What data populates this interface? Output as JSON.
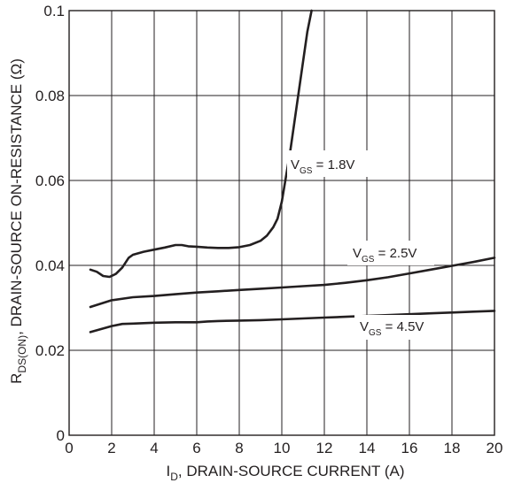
{
  "chart_data": {
    "type": "line",
    "xlabel": {
      "main": "I",
      "sub": "D",
      "rest": ", DRAIN-SOURCE CURRENT (A)"
    },
    "ylabel": {
      "main": "R",
      "sub": "DS(ON)",
      "rest": ", DRAIN-SOURCE ON-RESISTANCE (Ω)"
    },
    "xlim": [
      0,
      20
    ],
    "ylim": [
      0,
      0.1
    ],
    "x_ticks": [
      0,
      2,
      4,
      6,
      8,
      10,
      12,
      14,
      16,
      18,
      20
    ],
    "y_ticks": [
      0,
      0.02,
      0.04,
      0.06,
      0.08,
      0.1
    ],
    "y_tick_labels": [
      "0",
      "0.02",
      "0.04",
      "0.06",
      "0.08",
      "0.1"
    ],
    "grid": true,
    "series": [
      {
        "name": "VGS = 1.8V",
        "label": {
          "main": "V",
          "sub": "GS",
          "rest": " = 1.8V"
        },
        "x": [
          1.0,
          1.3,
          1.6,
          1.9,
          2.2,
          2.5,
          2.8,
          3.0,
          3.5,
          4.0,
          4.5,
          5.0,
          5.3,
          5.6,
          6.0,
          6.5,
          7.0,
          7.5,
          8.0,
          8.5,
          9.0,
          9.3,
          9.6,
          9.8,
          10.0,
          10.2,
          10.4,
          10.6,
          10.8,
          11.0,
          11.2,
          11.4
        ],
        "y": [
          0.039,
          0.0385,
          0.0375,
          0.0373,
          0.038,
          0.0395,
          0.0418,
          0.0425,
          0.0432,
          0.0437,
          0.0442,
          0.0448,
          0.0448,
          0.0445,
          0.0444,
          0.0442,
          0.0441,
          0.0441,
          0.0443,
          0.0448,
          0.0458,
          0.047,
          0.049,
          0.051,
          0.055,
          0.061,
          0.067,
          0.074,
          0.081,
          0.088,
          0.095,
          0.1
        ]
      },
      {
        "name": "VGS = 2.5V",
        "label": {
          "main": "V",
          "sub": "GS",
          "rest": " = 2.5V"
        },
        "x": [
          1,
          2,
          3,
          4,
          5,
          6,
          7,
          8,
          9,
          10,
          11,
          12,
          13,
          14,
          15,
          16,
          17,
          18,
          19,
          20
        ],
        "y": [
          0.0302,
          0.0318,
          0.0325,
          0.0328,
          0.0332,
          0.0336,
          0.0339,
          0.0342,
          0.0345,
          0.0348,
          0.0351,
          0.0354,
          0.0359,
          0.0365,
          0.0372,
          0.0381,
          0.039,
          0.0399,
          0.0408,
          0.0418
        ]
      },
      {
        "name": "VGS = 4.5V",
        "label": {
          "main": "V",
          "sub": "GS",
          "rest": " = 4.5V"
        },
        "x": [
          1,
          2,
          2.5,
          3,
          4,
          5,
          6,
          6.5,
          7,
          8,
          9,
          10,
          11,
          12,
          13,
          14,
          15,
          16,
          17,
          18,
          19,
          20
        ],
        "y": [
          0.0243,
          0.0257,
          0.0262,
          0.0263,
          0.0265,
          0.0266,
          0.0266,
          0.0268,
          0.0269,
          0.027,
          0.0271,
          0.0273,
          0.0275,
          0.0277,
          0.0279,
          0.0281,
          0.0283,
          0.0285,
          0.0287,
          0.0289,
          0.0291,
          0.0293
        ]
      }
    ]
  }
}
